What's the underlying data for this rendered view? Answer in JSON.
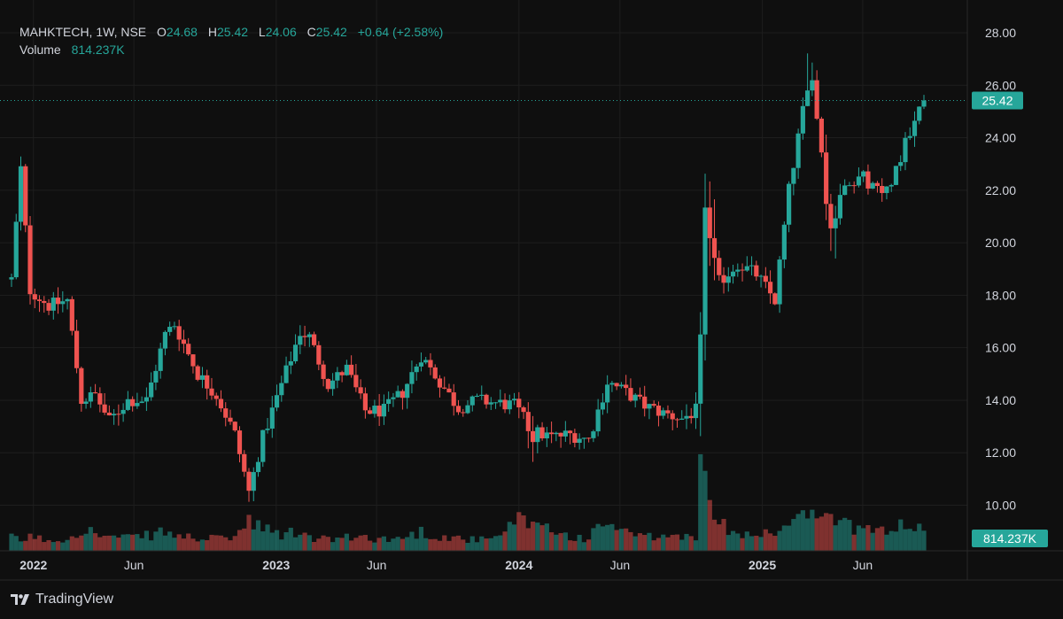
{
  "legend": {
    "symbol": "MAHKTECH, 1W, NSE",
    "open_label": "O",
    "open": "24.68",
    "high_label": "H",
    "high": "25.42",
    "low_label": "L",
    "low": "24.06",
    "close_label": "C",
    "close": "25.42",
    "change": "+0.64 (+2.58%)",
    "volume_label": "Volume",
    "volume": "814.237K"
  },
  "price_tag": "25.42",
  "volume_tag": "814.237K",
  "brand": "TradingView",
  "colors": {
    "up": "#26a69a",
    "down": "#ef5350",
    "background": "#0f0f0f",
    "grid": "#1e1e1e",
    "text": "#d1d4dc"
  },
  "chart_data": {
    "type": "candlestick",
    "y_ticks": [
      "28.00",
      "26.00",
      "24.00",
      "22.00",
      "20.00",
      "18.00",
      "16.00",
      "14.00",
      "12.00",
      "10.00"
    ],
    "ylim": [
      9,
      28.5
    ],
    "x_labels": [
      {
        "label": "2022",
        "date": "2022-01-01"
      },
      {
        "label": "Jun",
        "date": "2022-06-01"
      },
      {
        "label": "2023",
        "date": "2023-01-01"
      },
      {
        "label": "Jun",
        "date": "2023-06-01"
      },
      {
        "label": "2024",
        "date": "2024-01-01"
      },
      {
        "label": "Jun",
        "date": "2024-06-01"
      },
      {
        "label": "2025",
        "date": "2025-01-01"
      },
      {
        "label": "Jun",
        "date": "2025-06-01"
      }
    ],
    "last_price": 25.42,
    "anchors": [
      [
        "2021-11-29",
        18.6,
        1.2
      ],
      [
        "2021-12-13",
        22.8,
        1.0
      ],
      [
        "2021-12-27",
        18.2,
        1.3
      ],
      [
        "2022-01-24",
        17.6,
        1.0
      ],
      [
        "2022-02-21",
        17.8,
        1.1
      ],
      [
        "2022-03-14",
        14.0,
        2.2
      ],
      [
        "2022-04-04",
        14.2,
        1.6
      ],
      [
        "2022-04-25",
        13.2,
        1.3
      ],
      [
        "2022-05-23",
        14.0,
        1.2
      ],
      [
        "2022-06-20",
        14.0,
        1.4
      ],
      [
        "2022-07-18",
        16.5,
        1.8
      ],
      [
        "2022-08-01",
        16.9,
        1.4
      ],
      [
        "2022-09-05",
        15.0,
        1.2
      ],
      [
        "2022-10-03",
        14.2,
        1.1
      ],
      [
        "2022-10-31",
        12.7,
        1.4
      ],
      [
        "2022-11-21",
        10.5,
        2.6
      ],
      [
        "2022-12-12",
        12.6,
        2.0
      ],
      [
        "2023-01-09",
        14.6,
        1.5
      ],
      [
        "2023-02-06",
        16.6,
        1.8
      ],
      [
        "2023-02-20",
        16.4,
        1.2
      ],
      [
        "2023-03-20",
        14.6,
        1.1
      ],
      [
        "2023-04-17",
        15.2,
        1.2
      ],
      [
        "2023-05-15",
        13.6,
        1.3
      ],
      [
        "2023-06-12",
        13.6,
        1.1
      ],
      [
        "2023-07-10",
        14.3,
        1.2
      ],
      [
        "2023-08-07",
        15.7,
        1.8
      ],
      [
        "2023-09-04",
        14.7,
        1.3
      ],
      [
        "2023-10-02",
        13.7,
        1.2
      ],
      [
        "2023-10-30",
        14.0,
        1.0
      ],
      [
        "2023-11-27",
        13.9,
        1.1
      ],
      [
        "2023-12-25",
        13.8,
        2.6
      ],
      [
        "2024-01-22",
        12.8,
        3.2
      ],
      [
        "2024-02-19",
        12.6,
        2.0
      ],
      [
        "2024-03-18",
        12.7,
        1.3
      ],
      [
        "2024-04-15",
        12.5,
        1.2
      ],
      [
        "2024-05-13",
        14.7,
        2.8
      ],
      [
        "2024-06-10",
        14.3,
        1.7
      ],
      [
        "2024-07-08",
        13.8,
        1.2
      ],
      [
        "2024-08-05",
        13.5,
        1.4
      ],
      [
        "2024-09-02",
        13.3,
        1.2
      ],
      [
        "2024-09-23",
        13.6,
        1.5
      ],
      [
        "2024-09-30",
        16.0,
        8.2
      ],
      [
        "2024-10-07",
        21.5,
        6.5
      ],
      [
        "2024-10-28",
        18.5,
        2.5
      ],
      [
        "2024-11-25",
        19.2,
        1.8
      ],
      [
        "2024-12-23",
        18.8,
        1.5
      ],
      [
        "2025-01-20",
        17.8,
        1.9
      ],
      [
        "2025-02-10",
        22.0,
        2.4
      ],
      [
        "2025-03-03",
        25.0,
        3.0
      ],
      [
        "2025-03-17",
        26.2,
        3.2
      ],
      [
        "2025-03-31",
        23.5,
        2.8
      ],
      [
        "2025-04-14",
        20.5,
        3.5
      ],
      [
        "2025-05-05",
        22.4,
        2.4
      ],
      [
        "2025-06-02",
        22.5,
        2.0
      ],
      [
        "2025-06-30",
        21.8,
        1.8
      ],
      [
        "2025-07-21",
        22.8,
        2.6
      ],
      [
        "2025-08-11",
        24.3,
        2.4
      ],
      [
        "2025-08-25",
        25.42,
        2.0
      ]
    ]
  }
}
